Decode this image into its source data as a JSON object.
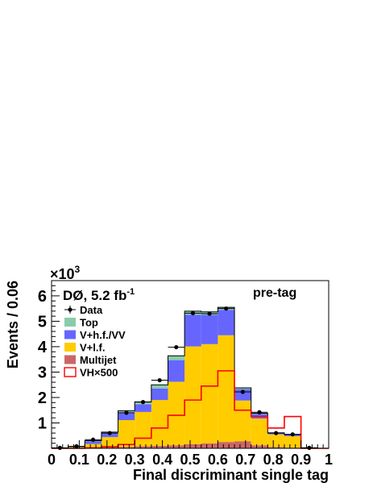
{
  "chart_data": {
    "type": "bar",
    "stacked": true,
    "histogram": true,
    "xlabel": "Final discriminant single tag",
    "ylabel": "Events / 0.06",
    "y_multiplier": "×10",
    "y_multiplier_exp": "3",
    "xlim": [
      0,
      1
    ],
    "ylim": [
      0,
      6.6
    ],
    "x_ticks": [
      "0",
      "0.1",
      "0.2",
      "0.3",
      "0.4",
      "0.5",
      "0.6",
      "0.7",
      "0.8",
      "0.9",
      "1"
    ],
    "y_ticks": [
      "1",
      "2",
      "3",
      "4",
      "5",
      "6"
    ],
    "experiment": "DØ, 5.2 fb",
    "lumi_exp": "-1",
    "region": "pre-tag",
    "bin_edges": [
      0.0,
      0.06,
      0.12,
      0.18,
      0.24,
      0.3,
      0.36,
      0.42,
      0.48,
      0.54,
      0.6,
      0.66,
      0.72,
      0.78,
      0.84,
      0.9,
      0.96,
      1.0
    ],
    "series": [
      {
        "name": "Multijet",
        "color": "#cc6666",
        "values": [
          0.0,
          0.01,
          0.02,
          0.04,
          0.06,
          0.08,
          0.1,
          0.12,
          0.16,
          0.2,
          0.25,
          0.28,
          0.12,
          0.05,
          0.03,
          0.02,
          0.0
        ]
      },
      {
        "name": "V+l.f.",
        "color": "#ffcc00",
        "values": [
          0.0,
          0.04,
          0.15,
          0.4,
          1.05,
          1.35,
          1.8,
          2.5,
          3.85,
          3.9,
          4.2,
          1.6,
          1.05,
          0.5,
          0.45,
          0.0,
          0.0
        ]
      },
      {
        "name": "V+h.f./VV",
        "color": "#6666ff",
        "values": [
          0.0,
          0.02,
          0.11,
          0.15,
          0.3,
          0.3,
          0.45,
          0.85,
          1.25,
          1.15,
          1.0,
          0.45,
          0.18,
          0.05,
          0.05,
          0.0,
          0.0
        ]
      },
      {
        "name": "Top",
        "color": "#88ccaa",
        "values": [
          0.0,
          0.0,
          0.02,
          0.05,
          0.07,
          0.1,
          0.15,
          0.17,
          0.14,
          0.12,
          0.1,
          0.05,
          0.03,
          0.01,
          0.01,
          0.0,
          0.0
        ]
      }
    ],
    "signal": {
      "name": "VH×500",
      "color": "#ff0000",
      "values": [
        0.0,
        0.0,
        0.02,
        0.06,
        0.15,
        0.4,
        0.8,
        1.3,
        1.9,
        2.45,
        3.05,
        1.5,
        1.25,
        0.8,
        1.25,
        0.0,
        0.0
      ]
    },
    "data": {
      "name": "Data",
      "values": [
        0.02,
        0.08,
        0.34,
        0.6,
        1.4,
        1.82,
        2.68,
        3.98,
        5.32,
        5.3,
        5.5,
        2.22,
        1.42,
        0.6,
        0.55,
        0.02,
        0.0
      ]
    },
    "legend": [
      "Data",
      "Top",
      "V+h.f./VV",
      "V+l.f.",
      "Multijet",
      "VH×500"
    ]
  }
}
